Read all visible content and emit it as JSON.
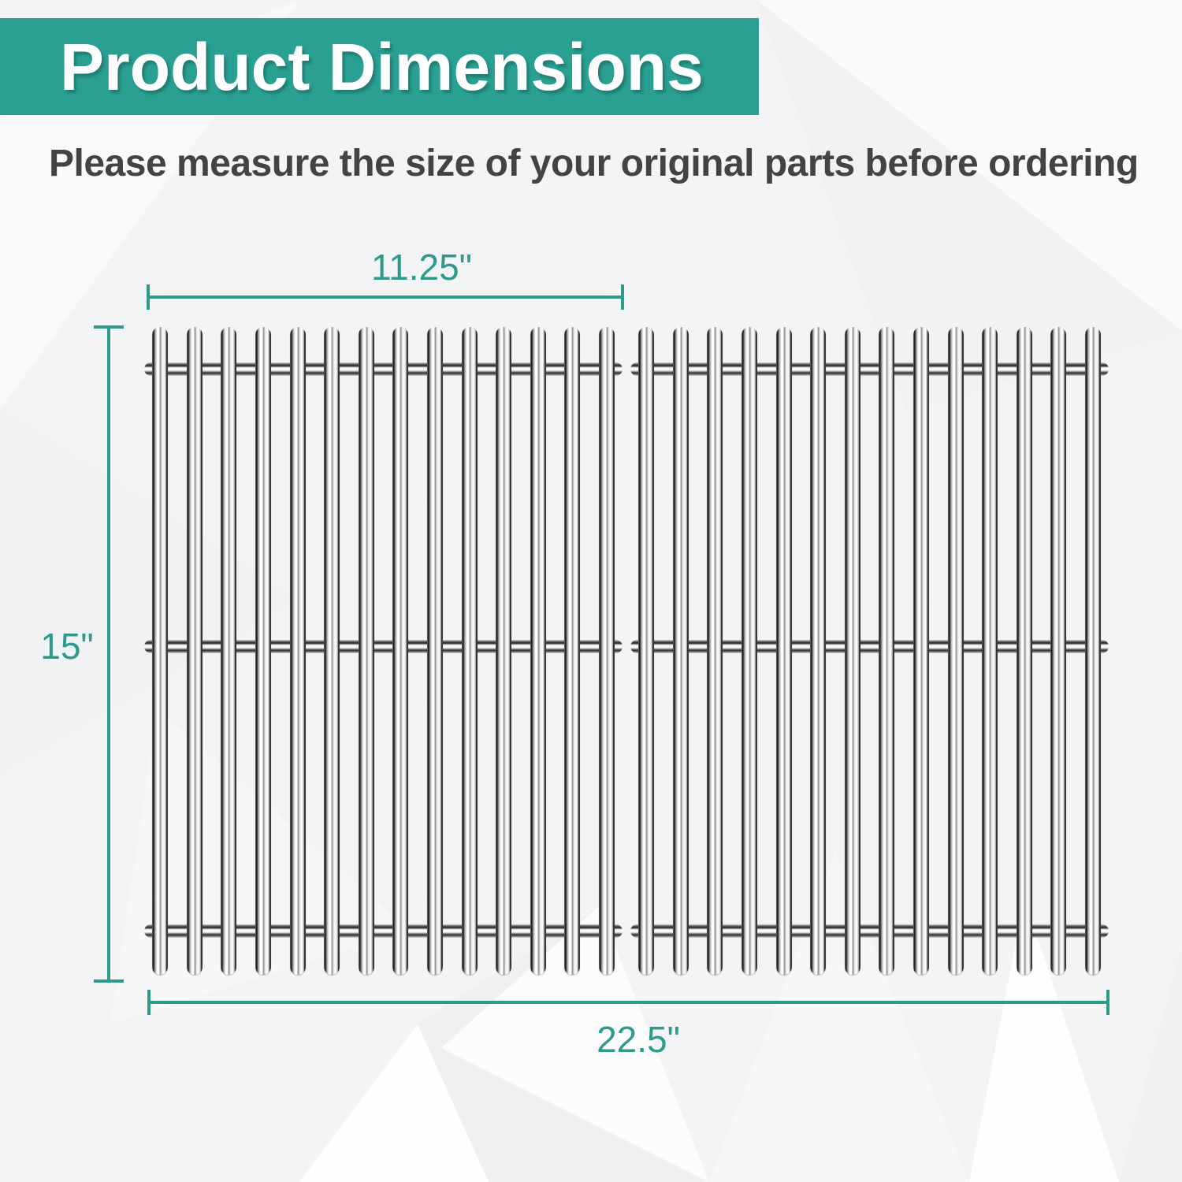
{
  "header": {
    "title": "Product Dimensions"
  },
  "subtitle": "Please measure the size of your original parts before ordering",
  "dimensions": {
    "single_grate_width": "11.25\"",
    "grate_height": "15\"",
    "total_width": "22.5\""
  },
  "grates": {
    "count": 2,
    "bars_per_grate": 14,
    "rods_per_grate": 3
  },
  "colors": {
    "banner_teal": "#29a092",
    "dimension_teal": "#2e9a8c",
    "subtitle_gray": "#434343",
    "background": "#f3f4f6"
  }
}
